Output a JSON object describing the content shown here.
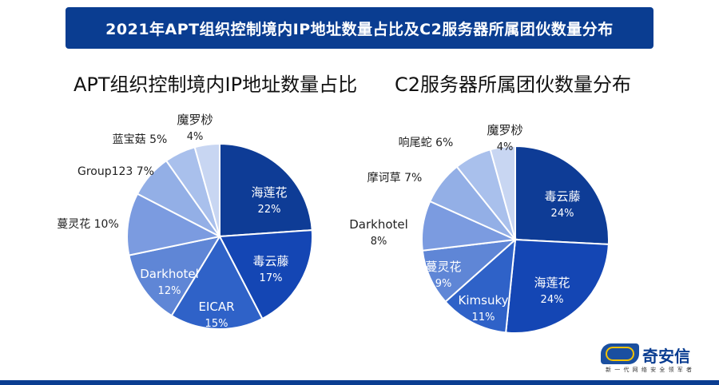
{
  "banner": {
    "title": "2021年APT组织控制境内IP地址数量占比及C2服务器所属团伙数量分布"
  },
  "logo": {
    "name": "奇安信",
    "tagline": "新 一 代 网 络 安 全 领 军 者"
  },
  "colors": {
    "banner": "#0a3d91"
  },
  "chart_data": [
    {
      "type": "pie",
      "title": "APT组织控制境内IP地址数量占比",
      "start_angle_deg": 0,
      "slices": [
        {
          "label": "海莲花",
          "pct": "22%",
          "value": 22,
          "color": "#0e3c96",
          "label_inside": true
        },
        {
          "label": "毒云藤",
          "pct": "17%",
          "value": 17,
          "color": "#1446b4",
          "label_inside": true
        },
        {
          "label": "EICAR",
          "pct": "15%",
          "value": 15,
          "color": "#2f62c8",
          "label_inside": true
        },
        {
          "label": "Darkhotel",
          "pct": "12%",
          "value": 12,
          "color": "#5f86d6",
          "label_inside": true
        },
        {
          "label": "蔓灵花",
          "pct": "10%",
          "value": 10,
          "color": "#7b9be0",
          "label_inside": false
        },
        {
          "label": "Group123",
          "pct": "7%",
          "value": 7,
          "color": "#93afe6",
          "label_inside": false
        },
        {
          "label": "蓝宝菇",
          "pct": "5%",
          "value": 5,
          "color": "#a9c0ec",
          "label_inside": false
        },
        {
          "label": "魔罗桫",
          "pct": "4%",
          "value": 4,
          "color": "#c8d6f2",
          "label_inside": false
        }
      ]
    },
    {
      "type": "pie",
      "title": "C2服务器所属团伙数量分布",
      "start_angle_deg": 0,
      "slices": [
        {
          "label": "毒云藤",
          "pct": "24%",
          "value": 24,
          "color": "#0e3c96",
          "label_inside": true
        },
        {
          "label": "海莲花",
          "pct": "24%",
          "value": 24,
          "color": "#1446b4",
          "label_inside": true
        },
        {
          "label": "Kimsuky",
          "pct": "11%",
          "value": 11,
          "color": "#2f62c8",
          "label_inside": true
        },
        {
          "label": "蔓灵花",
          "pct": "9%",
          "value": 9,
          "color": "#5f86d6",
          "label_inside": true
        },
        {
          "label": "Darkhotel",
          "pct": "8%",
          "value": 8,
          "color": "#7b9be0",
          "label_inside": false
        },
        {
          "label": "摩诃草",
          "pct": "7%",
          "value": 7,
          "color": "#93afe6",
          "label_inside": false
        },
        {
          "label": "响尾蛇",
          "pct": "6%",
          "value": 6,
          "color": "#a9c0ec",
          "label_inside": false
        },
        {
          "label": "魔罗桫",
          "pct": "4%",
          "value": 4,
          "color": "#c8d6f2",
          "label_inside": false
        }
      ]
    }
  ]
}
